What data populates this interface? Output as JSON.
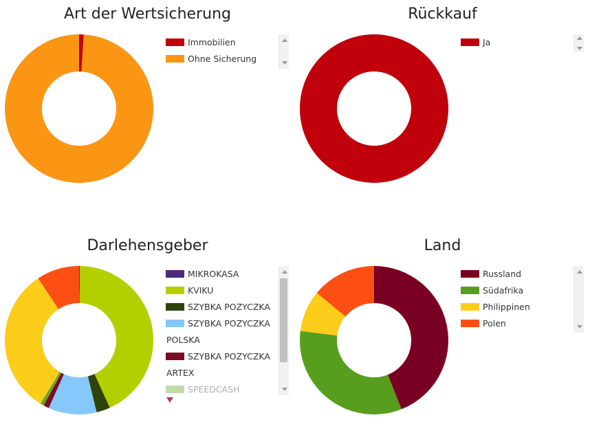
{
  "chart_data": [
    {
      "type": "pie",
      "donut": true,
      "title": "Art der Wertsicherung",
      "slices": [
        {
          "label": "Immobilien",
          "value": 1,
          "color": "#c0000b"
        },
        {
          "label": "Ohne Sicherung",
          "value": 99,
          "color": "#fb9514"
        }
      ],
      "legend": [
        "Immobilien",
        "Ohne Sicherung"
      ],
      "legend_position": "right"
    },
    {
      "type": "pie",
      "donut": true,
      "title": "Rückkauf",
      "slices": [
        {
          "label": "Ja",
          "value": 100,
          "color": "#c0000b"
        }
      ],
      "legend": [
        "Ja"
      ],
      "legend_position": "right"
    },
    {
      "type": "pie",
      "donut": true,
      "title": "Darlehensgeber",
      "slices": [
        {
          "label": "MIKROKASA",
          "value": 0.2,
          "color": "#4b2a7a"
        },
        {
          "label": "KVIKU",
          "value": 43,
          "color": "#b3cf00"
        },
        {
          "label": "SZYBKA POZYCZKA",
          "value": 3,
          "color": "#2f420b"
        },
        {
          "label": "SZYBKA POZYCZKA POLSKA",
          "value": 10.5,
          "color": "#86c8fb"
        },
        {
          "label": "SZYBKA POZYCZKA ARTEX",
          "value": 1.2,
          "color": "#7b0b28"
        },
        {
          "label": "SPEEDCASH",
          "value": 0.8,
          "color": "#6aa32c"
        },
        {
          "label": "",
          "value": 32,
          "color": "#fccc1b"
        },
        {
          "label": "",
          "value": 9.3,
          "color": "#fd4f13"
        }
      ],
      "legend": [
        {
          "label": "MIKROKASA"
        },
        {
          "label": "KVIKU"
        },
        {
          "label": "SZYBKA POZYCZKA"
        },
        {
          "label": "SZYBKA POZYCZKA",
          "continuation": "POLSKA"
        },
        {
          "label": "SZYBKA POZYCZKA",
          "continuation": "ARTEX"
        },
        {
          "label": "SPEEDCASH"
        }
      ],
      "legend_position": "right"
    },
    {
      "type": "pie",
      "donut": true,
      "title": "Land",
      "slices": [
        {
          "label": "Russland",
          "value": 44,
          "color": "#7a0023"
        },
        {
          "label": "Südafrika",
          "value": 33,
          "color": "#579e1e"
        },
        {
          "label": "Philippinen",
          "value": 9,
          "color": "#fccc1b"
        },
        {
          "label": "Polen",
          "value": 14,
          "color": "#fd4f13"
        }
      ],
      "legend": [
        "Russland",
        "Südafrika",
        "Philippinen",
        "Polen"
      ],
      "legend_position": "right"
    }
  ]
}
